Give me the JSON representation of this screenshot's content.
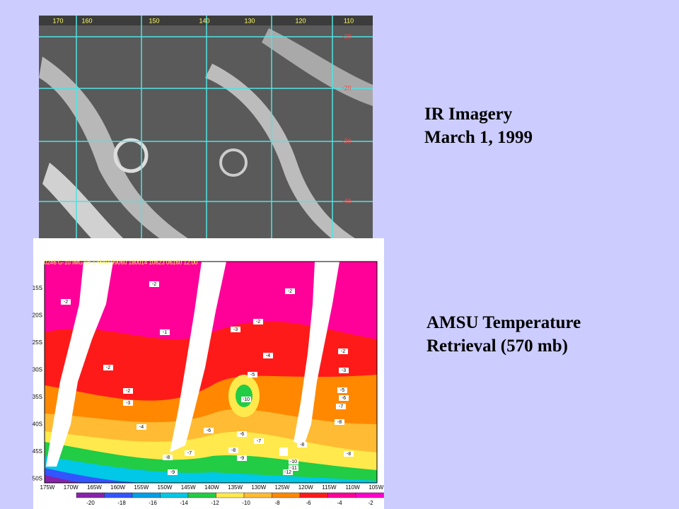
{
  "captions": [
    {
      "lines": [
        "IR Imagery",
        "March 1, 1999"
      ]
    },
    {
      "lines": [
        "AMSU Temperature",
        "Retrieval (570 mb)"
      ]
    }
  ],
  "ir_image": {
    "longitude_labels": [
      "170",
      "160",
      "150",
      "140",
      "130",
      "120",
      "110"
    ],
    "latitude_labels": [
      "-10",
      "-20",
      "-30",
      "-40"
    ],
    "footer": "0246 G-10 IMG 04 1 MAR 99060 180014 10623 06160 12.00"
  },
  "amsu_map": {
    "latitude_labels": [
      "15S",
      "20S",
      "25S",
      "30S",
      "35S",
      "40S",
      "45S",
      "50S"
    ],
    "longitude_labels": [
      "175W",
      "170W",
      "165W",
      "160W",
      "155W",
      "150W",
      "145W",
      "140W",
      "135W",
      "130W",
      "125W",
      "120W",
      "115W",
      "110W",
      "105W"
    ],
    "colorbar_labels": [
      "-20",
      "-18",
      "-16",
      "-14",
      "-12",
      "-10",
      "-8",
      "-6",
      "-4",
      "-2"
    ],
    "contour_labels": [
      "-2",
      "-2",
      "-2",
      "-2",
      "-1",
      "-3",
      "-4",
      "-2",
      "-3",
      "-2",
      "-2",
      "-3",
      "-5",
      "-10",
      "-5",
      "-6",
      "-7",
      "-8",
      "-4",
      "-6",
      "-6",
      "-7",
      "-7",
      "-8",
      "-8",
      "-8",
      "-8",
      "-9",
      "-9",
      "-10",
      "-11",
      "-12"
    ]
  }
}
